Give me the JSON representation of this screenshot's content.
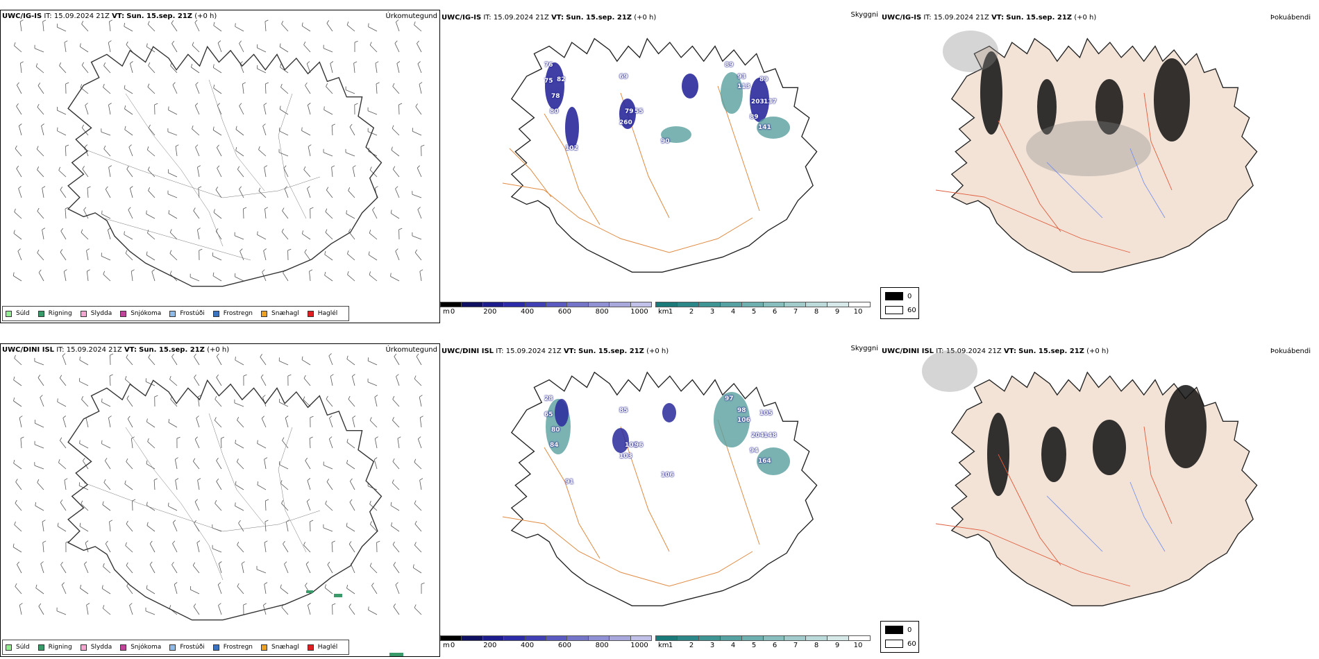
{
  "rows": [
    {
      "model": "UWC/IG-IS",
      "it_label": "IT:",
      "it_value": "15.09.2024 21Z",
      "vt_label": "VT:",
      "vt_value": "Sun. 15.sep. 21Z",
      "lead": "(+0 h)",
      "labels_ceiling": [
        "76",
        "75",
        "82",
        "78",
        "80",
        "102",
        "69",
        "79",
        "55",
        "260",
        "90",
        "89",
        "93",
        "113",
        "89",
        "89",
        "203",
        "137",
        "141"
      ],
      "labels_visibility_hint": "low"
    },
    {
      "model": "UWC/DINI ISL",
      "it_label": "IT:",
      "it_value": "15.09.2024 21Z",
      "vt_label": "VT:",
      "vt_value": "Sun. 15.sep. 21Z",
      "lead": "(+0 h)",
      "labels_ceiling": [
        "80",
        "84",
        "91",
        "85",
        "102",
        "96",
        "103",
        "106",
        "97",
        "98",
        "106",
        "94",
        "105",
        "204",
        "148",
        "164",
        "28",
        "65"
      ],
      "labels_visibility_hint": "low"
    }
  ],
  "panel_titles": {
    "precip": "Úrkomutegund",
    "ceiling": "Skyggni",
    "cloud": "Þokuábendi"
  },
  "precip_legend": [
    {
      "label": "Súld",
      "color": "#90ee90"
    },
    {
      "label": "Rigning",
      "color": "#3a9a6a"
    },
    {
      "label": "Slydda",
      "color": "#f4a6d0"
    },
    {
      "label": "Snjókoma",
      "color": "#c0449a"
    },
    {
      "label": "Frostúði",
      "color": "#8fbbe8"
    },
    {
      "label": "Frostregn",
      "color": "#3a74c0"
    },
    {
      "label": "Snæhagl",
      "color": "#f0a020"
    },
    {
      "label": "Haglél",
      "color": "#e02020"
    }
  ],
  "ceiling_bar": {
    "unit": "m",
    "ticks": [
      "0",
      "200",
      "400",
      "600",
      "800",
      "1000"
    ],
    "colors": [
      "#000000",
      "#101060",
      "#1c1c8c",
      "#2c2ca8",
      "#4040b4",
      "#5a5ac0",
      "#7474c8",
      "#9090d4",
      "#a8a8dc",
      "#c0c0e8"
    ]
  },
  "visibility_bar": {
    "unit": "km",
    "ticks": [
      "1",
      "2",
      "3",
      "4",
      "5",
      "6",
      "7",
      "8",
      "9",
      "10"
    ],
    "colors": [
      "#1a7a7a",
      "#2c8888",
      "#3f9494",
      "#56a2a2",
      "#6eb0b0",
      "#88bebe",
      "#a2cccc",
      "#bcdada",
      "#d6e8e8",
      "#ffffff"
    ]
  },
  "cloud_legend": {
    "high": "0",
    "low": "60"
  },
  "colors": {
    "land_fog": "#f3e3d6",
    "roads": "#e07a30",
    "rivers": "#6a8af0",
    "coast": "#222222"
  }
}
